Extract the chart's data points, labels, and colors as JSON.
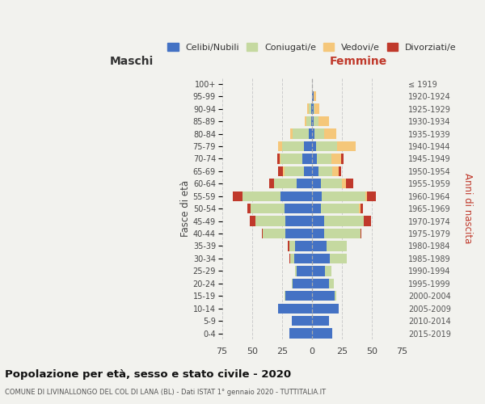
{
  "age_groups": [
    "0-4",
    "5-9",
    "10-14",
    "15-19",
    "20-24",
    "25-29",
    "30-34",
    "35-39",
    "40-44",
    "45-49",
    "50-54",
    "55-59",
    "60-64",
    "65-69",
    "70-74",
    "75-79",
    "80-84",
    "85-89",
    "90-94",
    "95-99",
    "100+"
  ],
  "birth_years": [
    "2015-2019",
    "2010-2014",
    "2005-2009",
    "2000-2004",
    "1995-1999",
    "1990-1994",
    "1985-1989",
    "1980-1984",
    "1975-1979",
    "1970-1974",
    "1965-1969",
    "1960-1964",
    "1955-1959",
    "1950-1954",
    "1945-1949",
    "1940-1944",
    "1935-1939",
    "1930-1934",
    "1925-1929",
    "1920-1924",
    "≤ 1919"
  ],
  "male": {
    "celibe": [
      19,
      17,
      28,
      22,
      16,
      13,
      15,
      14,
      22,
      22,
      23,
      26,
      13,
      7,
      8,
      7,
      3,
      1,
      1,
      0,
      0
    ],
    "coniugato": [
      0,
      0,
      0,
      1,
      1,
      1,
      3,
      5,
      19,
      25,
      28,
      32,
      19,
      16,
      18,
      18,
      13,
      4,
      2,
      0,
      0
    ],
    "vedovo": [
      0,
      0,
      0,
      0,
      0,
      0,
      0,
      0,
      0,
      0,
      0,
      0,
      0,
      1,
      1,
      3,
      2,
      1,
      1,
      0,
      0
    ],
    "divorziato": [
      0,
      0,
      0,
      0,
      0,
      0,
      1,
      1,
      1,
      5,
      3,
      8,
      4,
      4,
      2,
      0,
      0,
      0,
      0,
      0,
      0
    ]
  },
  "female": {
    "nubile": [
      17,
      14,
      22,
      19,
      14,
      11,
      15,
      12,
      10,
      10,
      7,
      8,
      7,
      5,
      4,
      3,
      2,
      1,
      1,
      1,
      0
    ],
    "coniugata": [
      0,
      0,
      0,
      1,
      4,
      5,
      14,
      17,
      30,
      33,
      32,
      36,
      18,
      12,
      12,
      18,
      8,
      4,
      1,
      0,
      0
    ],
    "vedova": [
      0,
      0,
      0,
      0,
      0,
      0,
      0,
      0,
      0,
      0,
      1,
      2,
      3,
      5,
      8,
      15,
      10,
      9,
      4,
      2,
      0
    ],
    "divorziata": [
      0,
      0,
      0,
      0,
      0,
      0,
      0,
      0,
      1,
      6,
      2,
      7,
      6,
      2,
      2,
      0,
      0,
      0,
      0,
      0,
      0
    ]
  },
  "colors": {
    "celibe": "#4472c4",
    "coniugato": "#c5d9a0",
    "vedovo": "#f5c77a",
    "divorziato": "#c0392b"
  },
  "title": "Popolazione per età, sesso e stato civile - 2020",
  "subtitle": "COMUNE DI LIVINALLONGO DEL COL DI LANA (BL) - Dati ISTAT 1° gennaio 2020 - TUTTITALIA.IT",
  "xlabel_left": "Maschi",
  "xlabel_right": "Femmine",
  "ylabel_left": "Fasce di età",
  "ylabel_right": "Anni di nascita",
  "xlim": 75,
  "legend_labels": [
    "Celibi/Nubili",
    "Coniugati/e",
    "Vedovi/e",
    "Divorziati/e"
  ],
  "background_color": "#f2f2ee",
  "grid_color": "#cccccc",
  "bar_height": 0.8
}
